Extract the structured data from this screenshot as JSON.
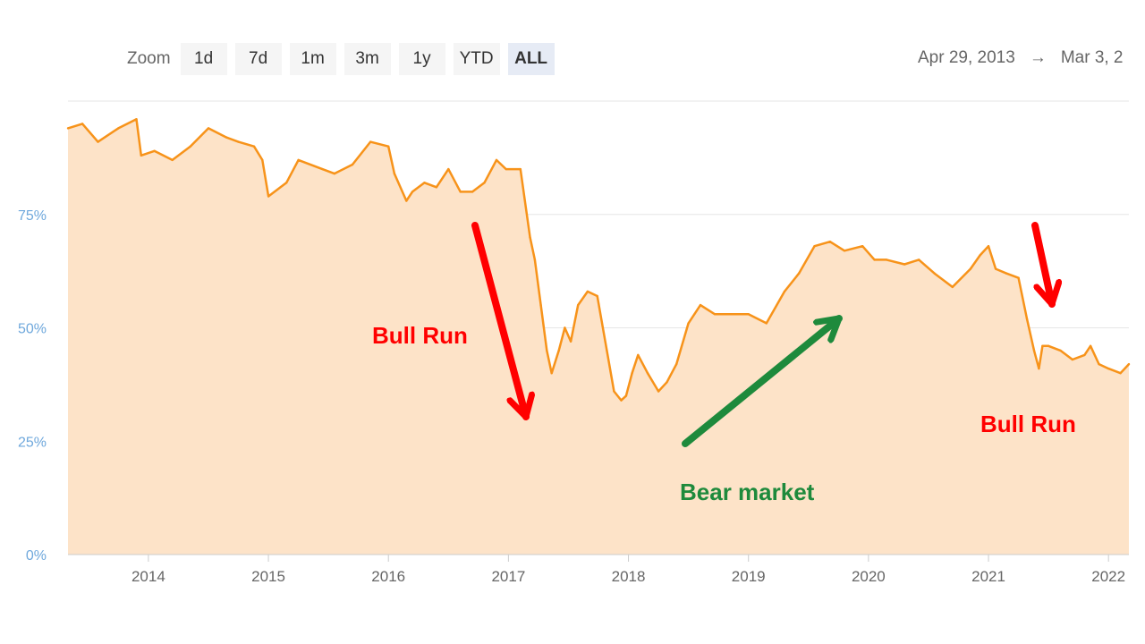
{
  "zoom": {
    "label": "Zoom",
    "buttons": [
      "1d",
      "7d",
      "1m",
      "3m",
      "1y",
      "YTD",
      "ALL"
    ],
    "active": "ALL"
  },
  "range": {
    "from": "Apr 29, 2013",
    "separator": "→",
    "to": "Mar 3, 2"
  },
  "annotations": [
    {
      "text": "Bull Run",
      "color": "#ff0000"
    },
    {
      "text": "Bear market",
      "color": "#1e8a3c"
    },
    {
      "text": "Bull Run",
      "color": "#ff0000"
    }
  ],
  "colors": {
    "line": "#f7931a",
    "area": "#fde3c8",
    "grid": "#e6e6e6",
    "ytick": "#6fa8dc",
    "xtick": "#666666"
  },
  "chart_data": {
    "type": "area",
    "title": "",
    "xlabel": "",
    "ylabel": "",
    "grid": true,
    "ylim": [
      0,
      100
    ],
    "xlim": [
      2013.33,
      2022.17
    ],
    "yticks": [
      "0%",
      "25%",
      "50%",
      "75%"
    ],
    "xticks": [
      "2014",
      "2015",
      "2016",
      "2017",
      "2018",
      "2019",
      "2020",
      "2021",
      "2022"
    ],
    "series": [
      {
        "x": [
          2013.33,
          2013.45,
          2013.58,
          2013.75,
          2013.9,
          2013.94,
          2014.05,
          2014.2,
          2014.35,
          2014.5,
          2014.65,
          2014.75,
          2014.88,
          2014.95,
          2015.0,
          2015.15,
          2015.25,
          2015.45,
          2015.55,
          2015.7,
          2015.85,
          2016.0,
          2016.05,
          2016.15,
          2016.2,
          2016.3,
          2016.4,
          2016.5,
          2016.6,
          2016.7,
          2016.8,
          2016.9,
          2016.98,
          2017.1,
          2017.18,
          2017.22,
          2017.27,
          2017.32,
          2017.36,
          2017.42,
          2017.47,
          2017.52,
          2017.58,
          2017.66,
          2017.74,
          2017.82,
          2017.88,
          2017.94,
          2017.98,
          2018.03,
          2018.08,
          2018.16,
          2018.25,
          2018.32,
          2018.4,
          2018.5,
          2018.6,
          2018.72,
          2018.85,
          2019.0,
          2019.15,
          2019.3,
          2019.42,
          2019.55,
          2019.68,
          2019.8,
          2019.95,
          2020.05,
          2020.15,
          2020.3,
          2020.42,
          2020.55,
          2020.7,
          2020.85,
          2020.93,
          2021.0,
          2021.06,
          2021.15,
          2021.25,
          2021.32,
          2021.38,
          2021.42,
          2021.45,
          2021.5,
          2021.6,
          2021.7,
          2021.8,
          2021.85,
          2021.92,
          2022.0,
          2022.1,
          2022.17
        ],
        "y": [
          94,
          95,
          91,
          94,
          96,
          88,
          89,
          87,
          90,
          94,
          92,
          91,
          90,
          87,
          79,
          82,
          87,
          85,
          84,
          86,
          91,
          90,
          84,
          78,
          80,
          82,
          81,
          85,
          80,
          80,
          82,
          87,
          85,
          85,
          70,
          65,
          55,
          45,
          40,
          45,
          50,
          47,
          55,
          58,
          57,
          45,
          36,
          34,
          35,
          40,
          44,
          40,
          36,
          38,
          42,
          51,
          55,
          53,
          53,
          53,
          51,
          58,
          62,
          68,
          69,
          67,
          68,
          65,
          65,
          64,
          65,
          62,
          59,
          63,
          66,
          68,
          63,
          62,
          61,
          52,
          45,
          41,
          46,
          46,
          45,
          43,
          44,
          46,
          42,
          41,
          40,
          42
        ]
      }
    ]
  }
}
